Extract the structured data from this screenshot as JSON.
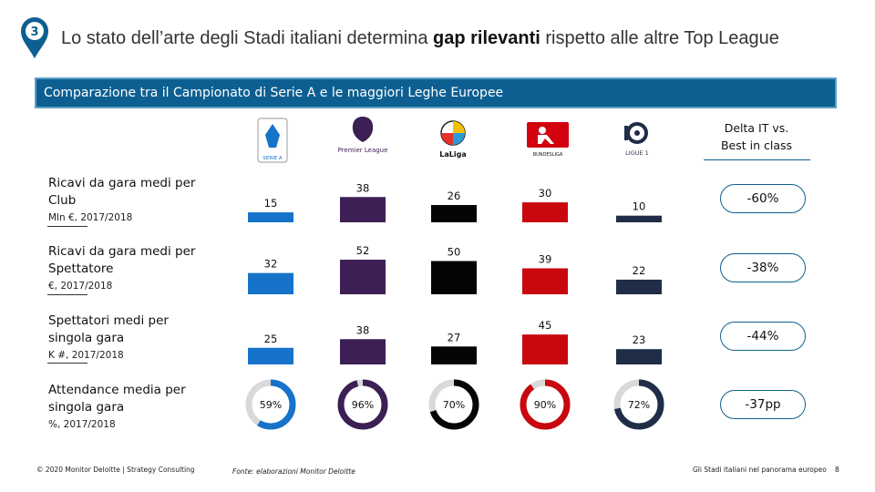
{
  "slide": {
    "number": "3",
    "title_pre": "Lo stato dell’arte degli Stadi italiani determina ",
    "title_bold": "gap rilevanti",
    "title_post": " rispetto alle altre Top League",
    "banner": "Comparazione tra il Campionato di Serie A e le maggiori Leghe Europee"
  },
  "colors": {
    "accent": "#0d5f91",
    "serie_a": "#1673c9",
    "premier": "#3c1f54",
    "laliga": "#050505",
    "bundesliga": "#c8070f",
    "ligue1": "#1f2d47"
  },
  "leagues": [
    {
      "key": "serie_a",
      "logo_text": "SERIE A"
    },
    {
      "key": "premier",
      "logo_text": "Premier League"
    },
    {
      "key": "laliga",
      "logo_text": "LaLiga"
    },
    {
      "key": "bundesliga",
      "logo_text": "BUNDESLIGA"
    },
    {
      "key": "ligue1",
      "logo_text": "LIGUE 1"
    }
  ],
  "delta_header": {
    "line1": "Delta IT vs.",
    "line2": "Best in class"
  },
  "rows": [
    {
      "label": "Ricavi da gara medi per Club",
      "unit": "Mln €, 2017/2018",
      "delta": "-60%"
    },
    {
      "label": "Ricavi da gara medi per Spettatore",
      "unit": "€, 2017/2018",
      "delta": "-38%"
    },
    {
      "label": "Spettatori medi per singola gara",
      "unit": "K #, 2017/2018",
      "delta": "-44%"
    },
    {
      "label": "Attendance media per singola gara",
      "unit": "%, 2017/2018",
      "delta": "-37pp"
    }
  ],
  "chart_data": {
    "type": "bar",
    "categories": [
      "Serie A",
      "Premier League",
      "LaLiga",
      "Bundesliga",
      "Ligue 1"
    ],
    "series": [
      {
        "name": "Ricavi da gara medi per Club (Mln €, 2017/2018)",
        "values": [
          15,
          38,
          26,
          30,
          10
        ]
      },
      {
        "name": "Ricavi da gara medi per Spettatore (€, 2017/2018)",
        "values": [
          32,
          52,
          50,
          39,
          22
        ]
      },
      {
        "name": "Spettatori medi per singola gara (K #, 2017/2018)",
        "values": [
          25,
          38,
          27,
          45,
          23
        ]
      }
    ],
    "attendance": {
      "name": "Attendance media per singola gara (%, 2017/2018)",
      "type": "donut",
      "values": [
        59,
        96,
        70,
        90,
        72
      ],
      "labels": [
        "59%",
        "96%",
        "70%",
        "90%",
        "72%"
      ]
    }
  },
  "footer": {
    "copyright": "© 2020 Monitor Deloitte | Strategy Consulting",
    "source": "Fonte: elaborazioni Monitor Deloitte",
    "doc_title": "Gli Stadi italiani nel panorama europeo",
    "page": "8"
  }
}
